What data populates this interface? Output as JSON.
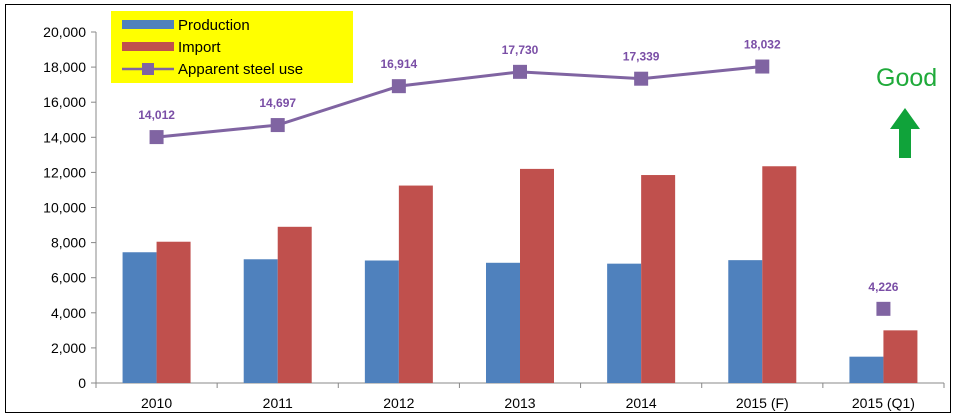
{
  "chart_data": {
    "type": "bar",
    "categories": [
      "2010",
      "2011",
      "2012",
      "2013",
      "2014",
      "2015 (F)",
      "2015 (Q1)"
    ],
    "series": [
      {
        "name": "Production",
        "type": "bar",
        "color": "#4f81bd",
        "values": [
          7450,
          7050,
          6980,
          6850,
          6800,
          7000,
          1500
        ]
      },
      {
        "name": "Import",
        "type": "bar",
        "color": "#c0504d",
        "values": [
          8050,
          8900,
          11250,
          12200,
          11850,
          12350,
          3000
        ]
      },
      {
        "name": "Apparent steel use",
        "type": "line",
        "color": "#8064a2",
        "values": [
          14012,
          14697,
          16914,
          17730,
          17339,
          18032,
          4226
        ],
        "labels": [
          "14,012",
          "14,697",
          "16,914",
          "17,730",
          "17,339",
          "18,032",
          "4,226"
        ],
        "line_connects_first": 6
      }
    ],
    "ylim": [
      0,
      20000
    ],
    "yticks": [
      0,
      2000,
      4000,
      6000,
      8000,
      10000,
      12000,
      14000,
      16000,
      18000,
      20000
    ],
    "ytick_labels": [
      "0",
      "2,000",
      "4,000",
      "6,000",
      "8,000",
      "10,000",
      "12,000",
      "14,000",
      "16,000",
      "18,000",
      "20,000"
    ],
    "legend_position": "top-left",
    "legend_background": "#ffff00",
    "grid": false,
    "annotation": {
      "text": "Good",
      "color": "#1faa3a",
      "icon": "up-arrow-icon"
    }
  }
}
